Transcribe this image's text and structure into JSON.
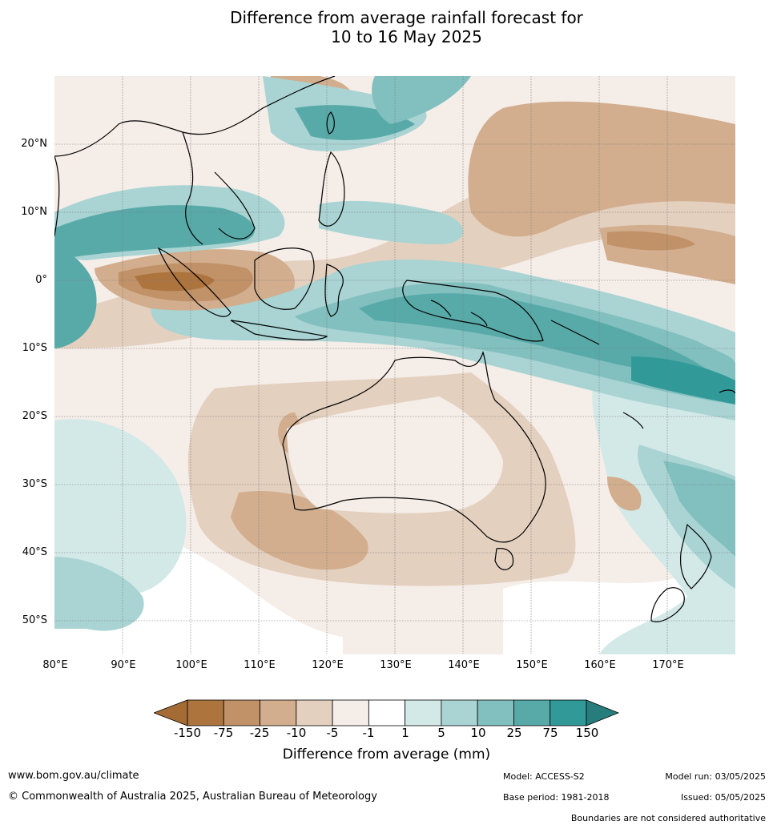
{
  "title_line1": "Difference from average rainfall forecast for",
  "title_line2": "10 to 16 May 2025",
  "map": {
    "lat_labels": [
      "20°N",
      "10°N",
      "0°",
      "10°S",
      "20°S",
      "30°S",
      "40°S",
      "50°S"
    ],
    "lon_labels": [
      "80°E",
      "90°E",
      "100°E",
      "110°E",
      "120°E",
      "130°E",
      "140°E",
      "150°E",
      "160°E",
      "170°E"
    ],
    "extent": {
      "lon_min": 80,
      "lon_max": 180,
      "lat_min": -55,
      "lat_max": 30
    }
  },
  "legend": {
    "title": "Difference from average (mm)",
    "ticks": [
      "-150",
      "-75",
      "-25",
      "-10",
      "-5",
      "-1",
      "1",
      "5",
      "10",
      "25",
      "75",
      "150"
    ],
    "colors": [
      "#a56b35",
      "#ae743e",
      "#c19167",
      "#d2ae8e",
      "#e4d0bf",
      "#f5ede8",
      "#ffffff",
      "#d3e9e8",
      "#a9d4d3",
      "#82c0bf",
      "#58aaa9",
      "#319a98",
      "#277d7c"
    ]
  },
  "footer": {
    "url": "www.bom.gov.au/climate",
    "copyright": "© Commonwealth of Australia 2025, Australian Bureau of Meteorology",
    "model": "Model: ACCESS-S2",
    "base_period": "Base period: 1981-2018",
    "model_run": "Model run: 03/05/2025",
    "issued": "Issued: 05/05/2025",
    "disclaimer": "Boundaries are not considered authoritative"
  }
}
